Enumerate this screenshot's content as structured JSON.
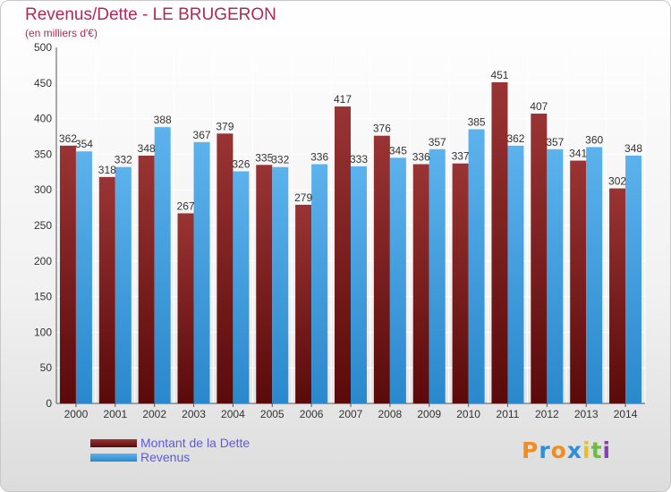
{
  "header": {
    "title": "Revenus/Dette - LE BRUGERON",
    "subtitle": "(en milliers d'€)"
  },
  "chart_data": {
    "type": "bar",
    "categories": [
      "2000",
      "2001",
      "2002",
      "2003",
      "2004",
      "2005",
      "2006",
      "2007",
      "2008",
      "2009",
      "2010",
      "2011",
      "2012",
      "2013",
      "2014"
    ],
    "series": [
      {
        "name": "Montant de la Dette",
        "color": "#7a1a1a",
        "values": [
          362,
          318,
          348,
          267,
          379,
          335,
          279,
          417,
          376,
          336,
          337,
          451,
          407,
          341,
          302
        ]
      },
      {
        "name": "Revenus",
        "color": "#4aa3e0",
        "values": [
          354,
          332,
          388,
          367,
          326,
          332,
          336,
          333,
          345,
          357,
          385,
          362,
          357,
          360,
          348
        ]
      }
    ],
    "ylim": [
      0,
      500
    ],
    "yticks": [
      0,
      50,
      100,
      150,
      200,
      250,
      300,
      350,
      400,
      450,
      500
    ],
    "grid": true,
    "legend_position": "bottom-left"
  },
  "legend": {
    "items": [
      {
        "label": "Montant de la Dette",
        "color": "#7a1a1a"
      },
      {
        "label": "Revenus",
        "color": "#4aa3e0"
      }
    ]
  },
  "logo": {
    "letters": [
      {
        "ch": "P",
        "color": "#f28c1e"
      },
      {
        "ch": "r",
        "color": "#2e8fd6"
      },
      {
        "ch": "o",
        "color": "#f28c1e"
      },
      {
        "ch": "x",
        "color": "#2e8fd6"
      },
      {
        "ch": "i",
        "color": "#e8c21a"
      },
      {
        "ch": "t",
        "color": "#6cbf3a"
      },
      {
        "ch": "i",
        "color": "#8a3fb0"
      }
    ]
  }
}
